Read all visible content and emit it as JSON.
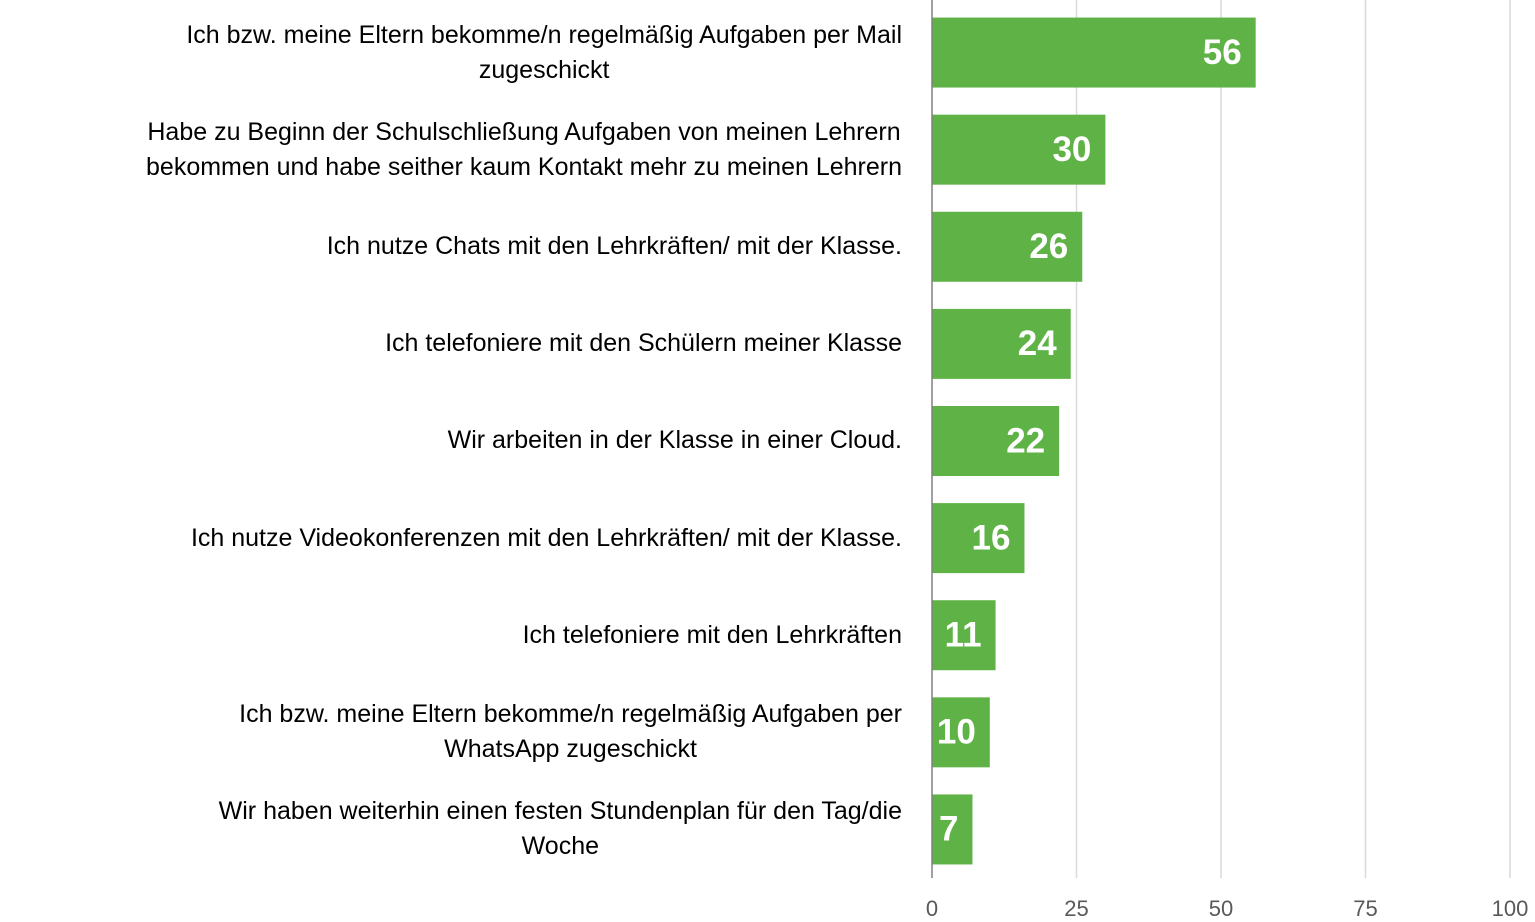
{
  "chart_data": {
    "type": "barh",
    "categories": [
      "Ich bzw. meine Eltern bekomme/n regelmäßig Aufgaben per Mail\nzugeschickt",
      "Habe zu Beginn der Schulschließung Aufgaben von meinen Lehrern\nbekommen und habe seither kaum Kontakt mehr zu meinen Lehrern",
      "Ich nutze Chats mit den Lehrkräften/ mit der Klasse.",
      "Ich telefoniere mit den Schülern meiner Klasse",
      "Wir arbeiten in der Klasse in einer Cloud.",
      "Ich nutze Videokonferenzen mit den Lehrkräften/ mit der Klasse.",
      "Ich telefoniere mit den Lehrkräften",
      "Ich bzw. meine Eltern bekomme/n regelmäßig Aufgaben per\nWhatsApp zugeschickt",
      "Wir haben weiterhin einen festen Stundenplan für den Tag/die\nWoche"
    ],
    "values": [
      56,
      30,
      26,
      24,
      22,
      16,
      11,
      10,
      7
    ],
    "color": "#5fb346",
    "xlim": [
      0,
      100
    ],
    "xticks": [
      0,
      25,
      50,
      75,
      100
    ],
    "grid": true
  }
}
